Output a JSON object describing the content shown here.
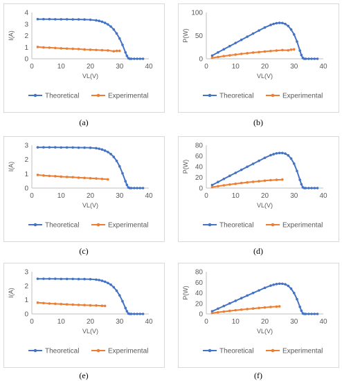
{
  "colors": {
    "theoretical": "#4472c4",
    "experimental": "#ed7d31",
    "axis": "#bfbfbf",
    "text": "#595959"
  },
  "chart_data": [
    {
      "id": "a",
      "type": "line",
      "caption": "(a)",
      "xlabel": "VL(V)",
      "ylabel": "I(A)",
      "xlim": [
        0,
        40
      ],
      "ylim": [
        0,
        4
      ],
      "xticks": [
        0,
        10,
        20,
        30,
        40
      ],
      "yticks": [
        0,
        1,
        2,
        3,
        4
      ],
      "grid": false,
      "legend": "bottom",
      "series": [
        {
          "name": "Theoretical",
          "x": [
            2,
            4,
            6,
            8,
            10,
            12,
            14,
            16,
            18,
            20,
            22,
            23,
            24,
            25,
            26,
            27,
            28,
            29,
            30,
            31,
            32,
            32.5,
            33,
            33.5,
            34,
            35,
            36,
            37,
            38
          ],
          "y": [
            3.42,
            3.42,
            3.42,
            3.41,
            3.41,
            3.41,
            3.4,
            3.4,
            3.39,
            3.37,
            3.32,
            3.27,
            3.2,
            3.1,
            2.97,
            2.78,
            2.53,
            2.18,
            1.75,
            1.2,
            0.55,
            0.25,
            0.05,
            0,
            0,
            0,
            0,
            0,
            0
          ]
        },
        {
          "name": "Experimental",
          "x": [
            2,
            4,
            6,
            8,
            10,
            12,
            14,
            16,
            18,
            20,
            22,
            24,
            26,
            28,
            29,
            30
          ],
          "y": [
            1.02,
            0.98,
            0.96,
            0.93,
            0.9,
            0.88,
            0.86,
            0.84,
            0.8,
            0.78,
            0.76,
            0.74,
            0.72,
            0.65,
            0.68,
            0.68
          ]
        }
      ]
    },
    {
      "id": "b",
      "type": "line",
      "caption": "(b)",
      "xlabel": "VL(V)",
      "ylabel": "P(W)",
      "xlim": [
        0,
        40
      ],
      "ylim": [
        0,
        100
      ],
      "xticks": [
        0,
        10,
        20,
        30,
        40
      ],
      "yticks": [
        0,
        50,
        100
      ],
      "grid": false,
      "legend": "bottom",
      "series": [
        {
          "name": "Theoretical",
          "x": [
            2,
            4,
            6,
            8,
            10,
            12,
            14,
            16,
            18,
            20,
            22,
            23,
            24,
            25,
            26,
            27,
            28,
            29,
            30,
            31,
            32,
            32.5,
            33,
            33.5,
            34,
            35,
            36,
            37,
            38
          ],
          "y": [
            6.8,
            13.7,
            20.5,
            27.3,
            34.1,
            40.9,
            47.6,
            54.4,
            61.0,
            67.4,
            73.0,
            75.2,
            76.8,
            77.5,
            77.2,
            75.1,
            70.8,
            63.2,
            52.5,
            37.2,
            17.6,
            8.1,
            1.7,
            0,
            0,
            0,
            0,
            0,
            0
          ]
        },
        {
          "name": "Experimental",
          "x": [
            2,
            4,
            6,
            8,
            10,
            12,
            14,
            16,
            18,
            20,
            22,
            24,
            26,
            28,
            29,
            30
          ],
          "y": [
            2.0,
            3.9,
            5.8,
            7.4,
            9.0,
            10.6,
            12.0,
            13.4,
            14.4,
            15.6,
            16.7,
            17.8,
            18.7,
            18.2,
            19.7,
            20.4
          ]
        }
      ]
    },
    {
      "id": "c",
      "type": "line",
      "caption": "(c)",
      "xlabel": "VL(V)",
      "ylabel": "I(A)",
      "xlim": [
        0,
        40
      ],
      "ylim": [
        0,
        3
      ],
      "xticks": [
        0,
        10,
        20,
        30,
        40
      ],
      "yticks": [
        0,
        1,
        2,
        3
      ],
      "grid": false,
      "legend": "bottom",
      "series": [
        {
          "name": "Theoretical",
          "x": [
            2,
            4,
            6,
            8,
            10,
            12,
            14,
            16,
            18,
            20,
            22,
            23,
            24,
            25,
            26,
            27,
            28,
            29,
            30,
            31,
            32,
            32.5,
            33,
            33.5,
            34,
            35,
            36,
            37,
            38
          ],
          "y": [
            2.85,
            2.85,
            2.85,
            2.85,
            2.84,
            2.84,
            2.84,
            2.83,
            2.83,
            2.82,
            2.79,
            2.75,
            2.7,
            2.62,
            2.52,
            2.38,
            2.18,
            1.9,
            1.52,
            1.03,
            0.48,
            0.22,
            0.04,
            0,
            0,
            0,
            0,
            0,
            0
          ]
        },
        {
          "name": "Experimental",
          "x": [
            2,
            4,
            6,
            8,
            10,
            12,
            14,
            16,
            18,
            20,
            22,
            24,
            26
          ],
          "y": [
            0.92,
            0.88,
            0.85,
            0.83,
            0.8,
            0.78,
            0.76,
            0.73,
            0.71,
            0.69,
            0.67,
            0.64,
            0.61
          ]
        }
      ]
    },
    {
      "id": "d",
      "type": "line",
      "caption": "(d)",
      "xlabel": "VL(V)",
      "ylabel": "P(W)",
      "xlim": [
        0,
        40
      ],
      "ylim": [
        0,
        80
      ],
      "xticks": [
        0,
        10,
        20,
        30,
        40
      ],
      "yticks": [
        0,
        20,
        40,
        60,
        80
      ],
      "grid": false,
      "legend": "bottom",
      "series": [
        {
          "name": "Theoretical",
          "x": [
            2,
            4,
            6,
            8,
            10,
            12,
            14,
            16,
            18,
            20,
            22,
            23,
            24,
            25,
            26,
            27,
            28,
            29,
            30,
            31,
            32,
            32.5,
            33,
            33.5,
            34,
            35,
            36,
            37,
            38
          ],
          "y": [
            5.7,
            11.4,
            17.1,
            22.8,
            28.4,
            34.1,
            39.8,
            45.3,
            50.9,
            56.4,
            61.4,
            63.3,
            64.8,
            65.5,
            65.5,
            64.3,
            61.0,
            55.1,
            45.6,
            31.9,
            15.4,
            7.2,
            1.3,
            0,
            0,
            0,
            0,
            0,
            0
          ]
        },
        {
          "name": "Experimental",
          "x": [
            2,
            4,
            6,
            8,
            10,
            12,
            14,
            16,
            18,
            20,
            22,
            24,
            26
          ],
          "y": [
            1.8,
            3.5,
            5.1,
            6.6,
            8.0,
            9.4,
            10.6,
            11.7,
            12.8,
            13.8,
            14.7,
            15.4,
            15.9
          ]
        }
      ]
    },
    {
      "id": "e",
      "type": "line",
      "caption": "(e)",
      "xlabel": "VL(V)",
      "ylabel": "I(A)",
      "xlim": [
        0,
        40
      ],
      "ylim": [
        0,
        3
      ],
      "xticks": [
        0,
        10,
        20,
        30,
        40
      ],
      "yticks": [
        0,
        1,
        2,
        3
      ],
      "grid": false,
      "legend": "bottom",
      "series": [
        {
          "name": "Theoretical",
          "x": [
            2,
            4,
            6,
            8,
            10,
            12,
            14,
            16,
            18,
            20,
            22,
            23,
            24,
            25,
            26,
            27,
            28,
            29,
            30,
            31,
            32,
            32.5,
            33,
            33.5,
            34,
            35,
            36,
            37,
            38
          ],
          "y": [
            2.5,
            2.5,
            2.5,
            2.5,
            2.49,
            2.49,
            2.49,
            2.48,
            2.48,
            2.47,
            2.44,
            2.41,
            2.36,
            2.29,
            2.2,
            2.08,
            1.9,
            1.65,
            1.32,
            0.9,
            0.42,
            0.19,
            0.03,
            0,
            0,
            0,
            0,
            0,
            0
          ]
        },
        {
          "name": "Experimental",
          "x": [
            2,
            4,
            6,
            8,
            10,
            12,
            14,
            16,
            18,
            20,
            22,
            24,
            25
          ],
          "y": [
            0.8,
            0.77,
            0.74,
            0.72,
            0.7,
            0.68,
            0.66,
            0.64,
            0.63,
            0.61,
            0.6,
            0.58,
            0.57
          ]
        }
      ]
    },
    {
      "id": "f",
      "type": "line",
      "caption": "(f)",
      "xlabel": "VL(V)",
      "ylabel": "P(W)",
      "xlim": [
        0,
        40
      ],
      "ylim": [
        0,
        80
      ],
      "xticks": [
        0,
        10,
        20,
        30,
        40
      ],
      "yticks": [
        0,
        20,
        40,
        60,
        80
      ],
      "grid": false,
      "legend": "bottom",
      "series": [
        {
          "name": "Theoretical",
          "x": [
            2,
            4,
            6,
            8,
            10,
            12,
            14,
            16,
            18,
            20,
            22,
            23,
            24,
            25,
            26,
            27,
            28,
            29,
            30,
            31,
            32,
            32.5,
            33,
            33.5,
            34,
            35,
            36,
            37,
            38
          ],
          "y": [
            5.0,
            10.0,
            15.0,
            20.0,
            24.9,
            29.9,
            34.9,
            39.7,
            44.6,
            49.4,
            53.7,
            55.4,
            56.6,
            57.3,
            57.2,
            56.2,
            53.2,
            47.9,
            39.6,
            27.9,
            13.4,
            6.2,
            1.0,
            0,
            0,
            0,
            0,
            0,
            0
          ]
        },
        {
          "name": "Experimental",
          "x": [
            2,
            4,
            6,
            8,
            10,
            12,
            14,
            16,
            18,
            20,
            22,
            24,
            25
          ],
          "y": [
            1.6,
            3.1,
            4.4,
            5.8,
            7.0,
            8.2,
            9.2,
            10.2,
            11.3,
            12.2,
            13.2,
            13.9,
            14.3
          ]
        }
      ]
    }
  ]
}
